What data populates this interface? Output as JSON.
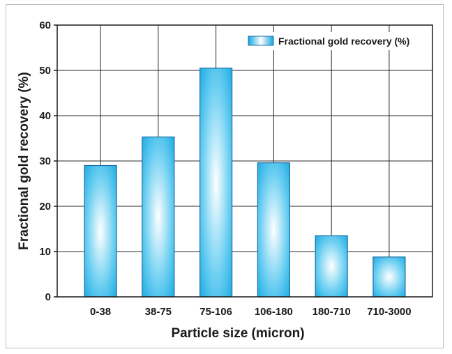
{
  "chart_data": {
    "type": "bar",
    "title": "",
    "xlabel": "Particle size (micron)",
    "ylabel": "Fractional gold recovery (%)",
    "categories": [
      "0-38",
      "38-75",
      "75-106",
      "106-180",
      "180-710",
      "710-3000"
    ],
    "series": [
      {
        "name": "Fractional gold recovery (%)",
        "values": [
          29,
          35.3,
          50.5,
          29.6,
          13.5,
          8.8
        ]
      }
    ],
    "ylim": [
      0,
      60
    ],
    "yticks": [
      0,
      10,
      20,
      30,
      40,
      50,
      60
    ],
    "grid": true,
    "legend_position": "top-right",
    "colors": {
      "bar_edge": "#1f6fa6",
      "bar_fill": "#12a6e0",
      "bar_highlight": "#ffffff",
      "grid": "#2a2a2a"
    }
  }
}
